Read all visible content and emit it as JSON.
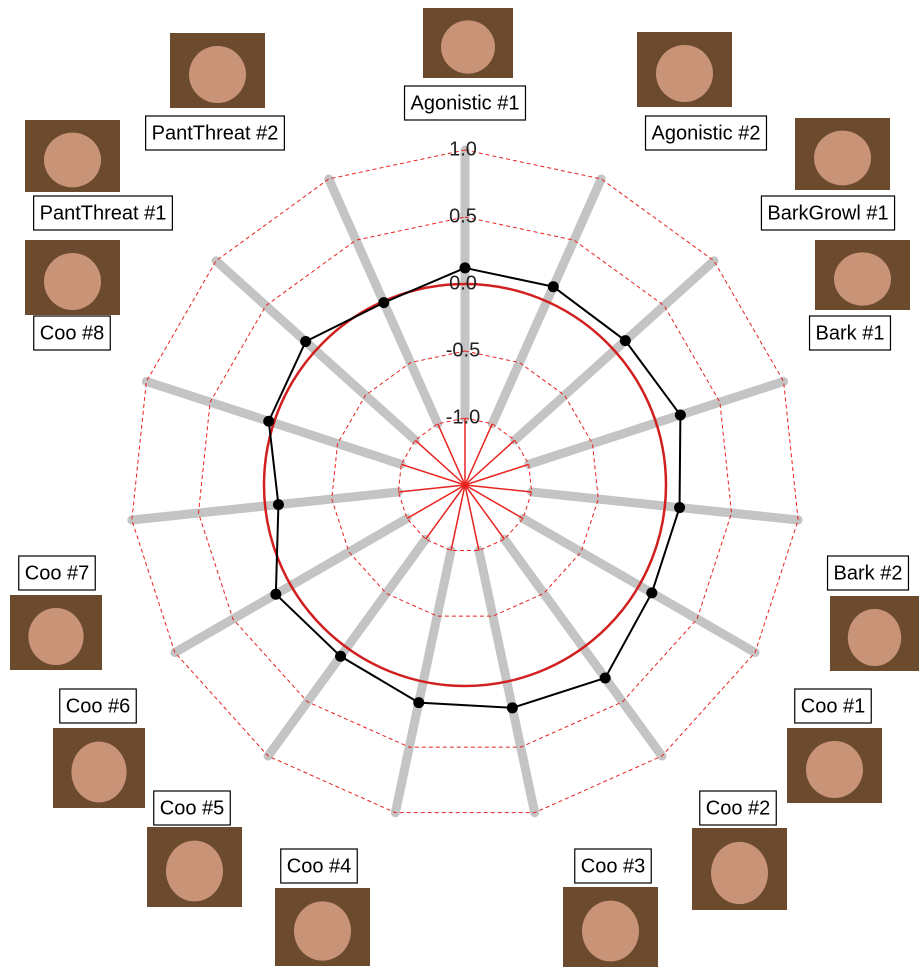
{
  "chart_data": {
    "type": "radar",
    "categories": [
      "Agonistic #1",
      "Agonistic #2",
      "BarkGrowl #1",
      "Bark #1",
      "Bark #2",
      "Coo #1",
      "Coo #2",
      "Coo #3",
      "Coo #4",
      "Coo #5",
      "Coo #6",
      "Coo #7",
      "Coo #8",
      "PantThreat #1",
      "PantThreat #2"
    ],
    "values": [
      0.12,
      0.12,
      0.11,
      0.19,
      0.11,
      0.11,
      0.28,
      0.2,
      0.16,
      0.08,
      0.13,
      -0.1,
      0.04,
      0.1,
      -0.01
    ],
    "color": "#000000",
    "ylim": [
      -1.5,
      1.0
    ],
    "yticks": [
      {
        "value": -1.0,
        "label": "-1.0"
      },
      -0.5,
      {
        "value": 0.0,
        "label": "0.0"
      },
      0.5,
      {
        "value": 1.0,
        "label": "1.0"
      }
    ],
    "grid": true
  }
}
